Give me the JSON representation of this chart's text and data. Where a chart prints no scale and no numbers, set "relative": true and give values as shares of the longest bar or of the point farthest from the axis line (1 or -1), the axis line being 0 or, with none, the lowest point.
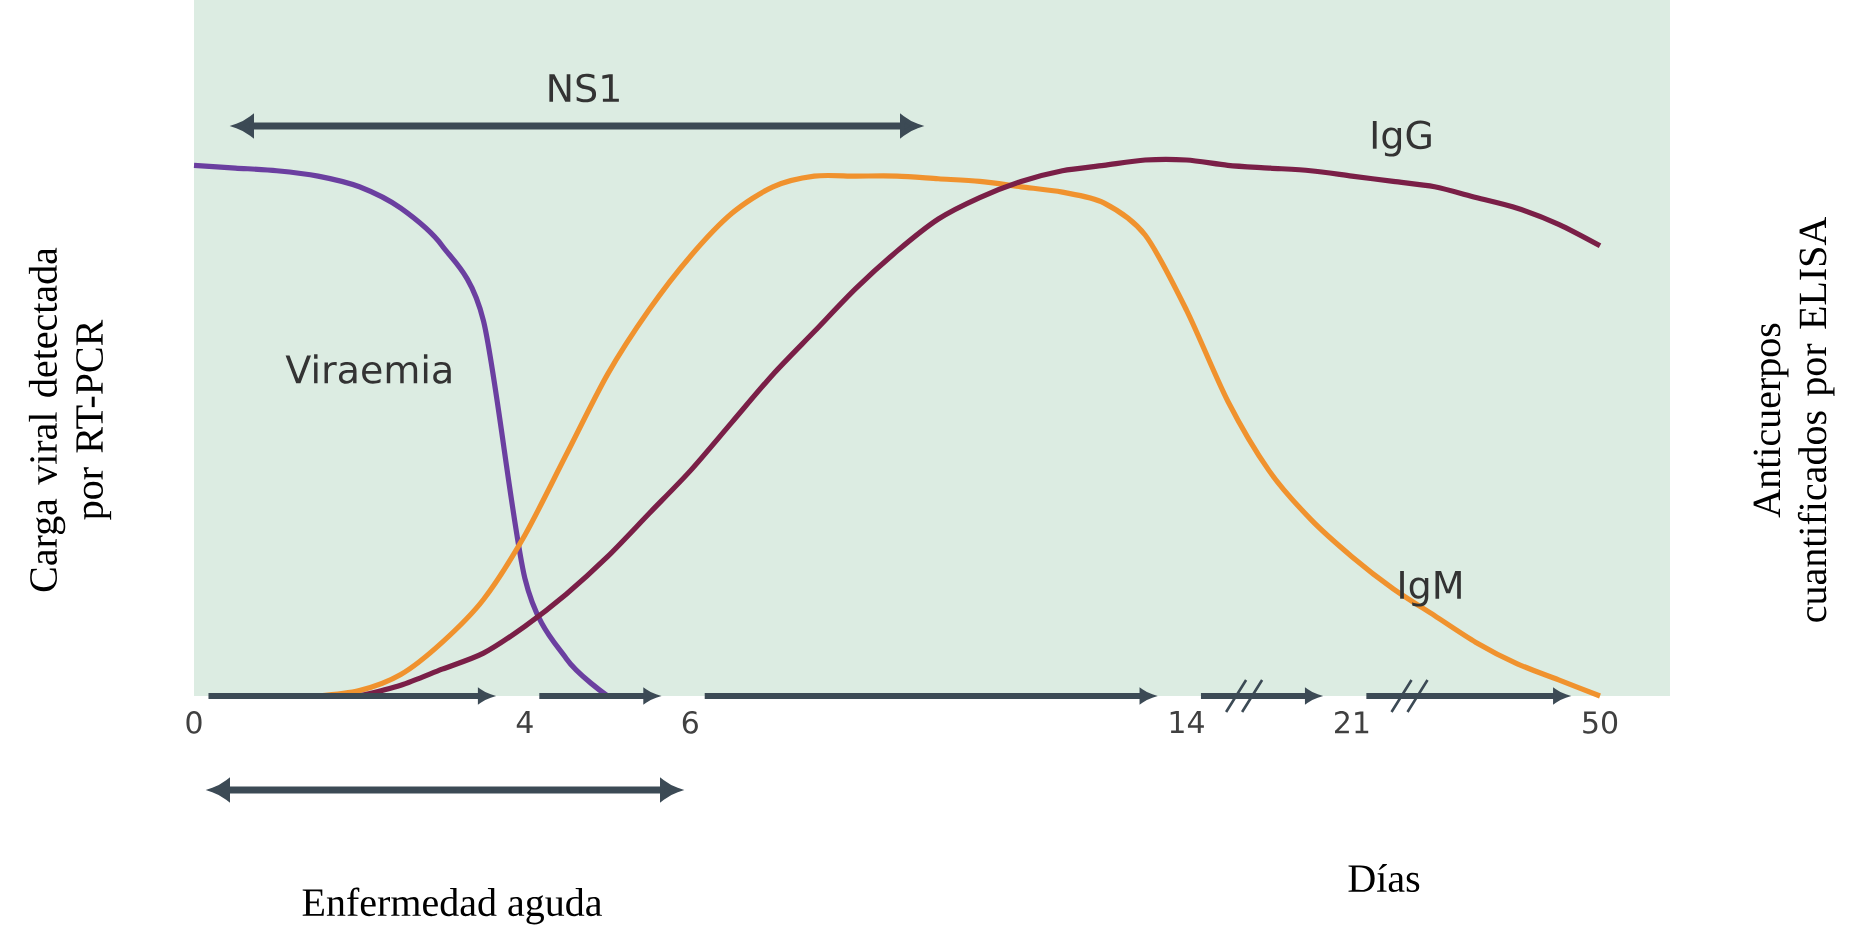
{
  "chart_data": {
    "type": "line",
    "relative": true,
    "marker": "none",
    "ylabel": "Carga viral detectada por RT-PCR",
    "y2label": "Anticuerpos cuantificados por ELISA",
    "xlabel": "Días",
    "annotations": [
      "NS1",
      "Enfermedad aguda"
    ],
    "categories": [
      "0",
      null,
      null,
      null,
      null,
      null,
      null,
      null,
      "4",
      null,
      null,
      null,
      "6",
      null,
      null,
      null,
      null,
      null,
      null,
      null,
      null,
      null,
      null,
      null,
      "14",
      null,
      null,
      null,
      "21",
      null,
      null,
      null,
      null,
      null,
      "50"
    ],
    "series": [
      {
        "name": "Viraemia",
        "color": "#6b3fa0",
        "values": [
          0.99,
          0.985,
          0.98,
          0.97,
          0.95,
          0.91,
          0.84,
          0.7,
          0.22,
          0.07,
          0.0,
          null,
          null,
          null,
          null,
          null,
          null,
          null,
          null,
          null,
          null,
          null,
          null,
          null,
          null,
          null,
          null,
          null,
          null,
          null,
          null,
          null,
          null,
          null,
          null
        ]
      },
      {
        "name": "IgM",
        "color": "#f0922e",
        "values": [
          null,
          null,
          null,
          0.0,
          0.01,
          0.04,
          0.1,
          0.18,
          0.3,
          0.45,
          0.6,
          0.72,
          0.82,
          0.9,
          0.95,
          0.97,
          0.97,
          0.97,
          0.965,
          0.96,
          0.95,
          0.94,
          0.92,
          0.86,
          0.72,
          0.55,
          0.42,
          0.33,
          0.26,
          0.2,
          0.15,
          0.1,
          0.06,
          0.03,
          0.0
        ]
      },
      {
        "name": "IgG",
        "color": "#7a1f47",
        "values": [
          null,
          null,
          null,
          null,
          0.0,
          0.02,
          0.05,
          0.08,
          0.13,
          0.19,
          0.26,
          0.34,
          0.42,
          0.51,
          0.6,
          0.68,
          0.76,
          0.83,
          0.89,
          0.93,
          0.96,
          0.98,
          0.99,
          1.0,
          1.0,
          0.99,
          0.985,
          0.98,
          0.97,
          0.96,
          0.95,
          0.93,
          0.91,
          0.88,
          0.84
        ]
      }
    ]
  }
}
